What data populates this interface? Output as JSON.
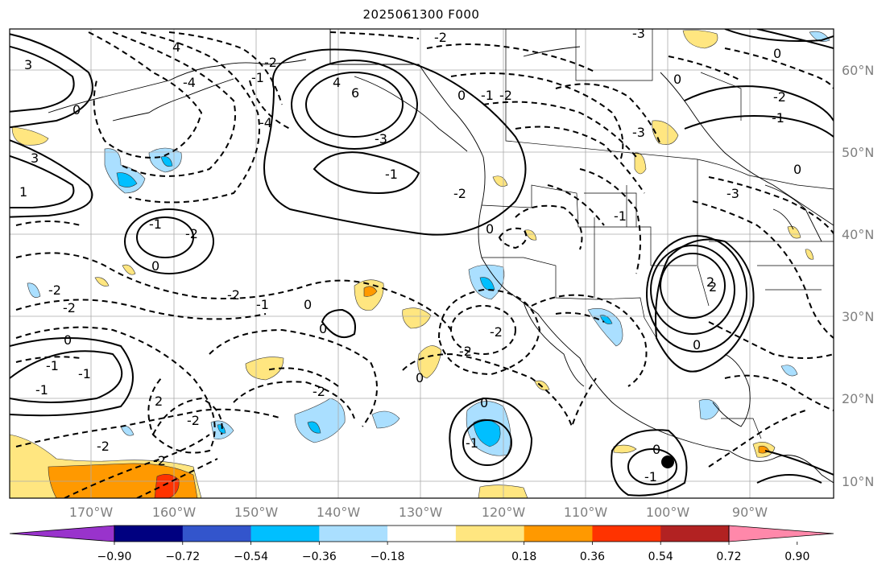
{
  "title": "2025061300 F000",
  "latitude_labels": [
    "60°N",
    "50°N",
    "40°N",
    "30°N",
    "20°N",
    "10°N"
  ],
  "longitude_labels": [
    "170°W",
    "160°W",
    "150°W",
    "140°W",
    "130°W",
    "120°W",
    "110°W",
    "100°W",
    "90°W"
  ],
  "colorbar": {
    "tick_labels": [
      "−0.90",
      "−0.72",
      "−0.54",
      "−0.36",
      "−0.18",
      "0.18",
      "0.36",
      "0.54",
      "0.72",
      "0.90"
    ],
    "colors": [
      "#9933cc",
      "#000080",
      "#3355cc",
      "#00bfff",
      "#aadfff",
      "#ffffff",
      "#ffe680",
      "#ff9900",
      "#ff3300",
      "#b22222",
      "#ff88aa"
    ]
  },
  "contour_labels": [
    "4",
    "6",
    "-2",
    "0",
    "-1",
    "-2",
    "-3",
    "-3",
    "0",
    "-2",
    "0",
    "-1",
    "0",
    "-3",
    "4",
    "3",
    "-4",
    "-2",
    "-1",
    "0",
    "3",
    "-3",
    "-1",
    "-2",
    "-4",
    "-2",
    "-1",
    "0",
    "-1",
    "0",
    "-2",
    "-2",
    "-2",
    "-2",
    "2",
    "-2",
    "0",
    "-1",
    "-2",
    "-2",
    "-1",
    "0",
    "-1",
    "-2",
    "0",
    "-1",
    "-2",
    "0",
    "-1",
    "0",
    "-1",
    "1",
    "0",
    "2",
    "0",
    "2"
  ]
}
